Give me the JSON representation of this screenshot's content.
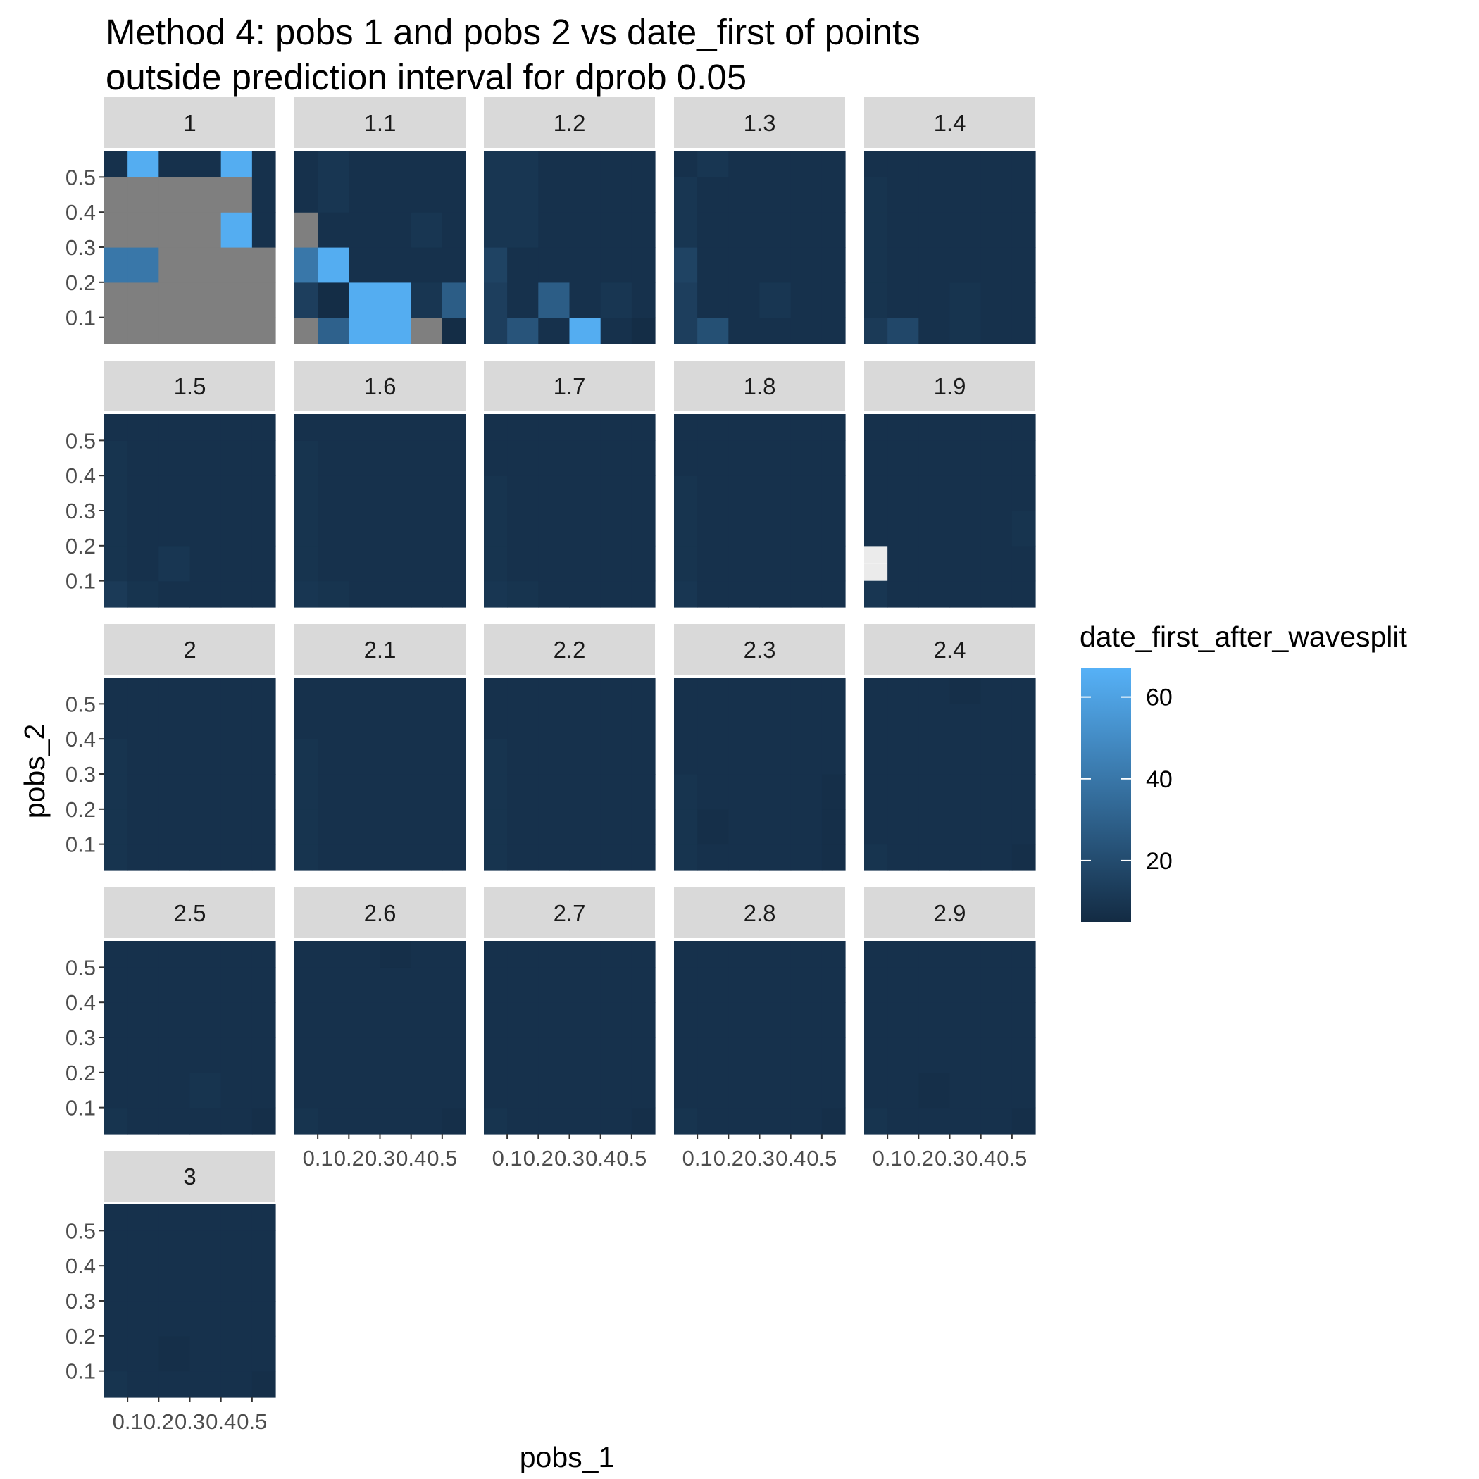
{
  "chart_data": {
    "type": "heatmap",
    "title_lines": [
      "Method 4: pobs 1 and pobs 2 vs date_first of points",
      "outside prediction interval for dprob 0.05"
    ],
    "xlabel": "pobs_1",
    "ylabel": "pobs_2",
    "x_ticks": [
      0.1,
      0.2,
      0.3,
      0.4,
      0.5
    ],
    "x_tick_labels": [
      "0.1",
      "0.2",
      "0.3",
      "0.4",
      "0.5"
    ],
    "y_ticks": [
      0.1,
      0.2,
      0.3,
      0.4,
      0.5
    ],
    "y_tick_labels": [
      "0.1",
      "0.2",
      "0.3",
      "0.4",
      "0.5"
    ],
    "xlim": [
      0.025,
      0.575
    ],
    "ylim": [
      0.025,
      0.575
    ],
    "x": [
      0.05,
      0.15,
      0.25,
      0.35,
      0.45,
      0.55
    ],
    "y": [
      0.05,
      0.15,
      0.25,
      0.35,
      0.45,
      0.55
    ],
    "grid": true,
    "legend": {
      "title": "date_first_after_wavesplit",
      "position": "right",
      "ticks": [
        20,
        40,
        60
      ],
      "tick_labels": [
        "20",
        "40",
        "60"
      ],
      "range": [
        5,
        67
      ],
      "low_color": "#132B43",
      "high_color": "#56B1F7",
      "na_color": "#7F7F7F"
    },
    "panels": [
      {
        "label": "1",
        "z": [
          [
            -1,
            -1,
            -1,
            -1,
            -1,
            -1
          ],
          [
            -1,
            -1,
            -1,
            -1,
            -1,
            -1
          ],
          [
            40,
            40,
            -1,
            -1,
            -1,
            -1
          ],
          [
            -1,
            -1,
            -1,
            -1,
            65,
            8
          ],
          [
            -1,
            -1,
            -1,
            -1,
            -1,
            8
          ],
          [
            8,
            65,
            8,
            8,
            65,
            8
          ]
        ]
      },
      {
        "label": "1.1",
        "z": [
          [
            -1,
            30,
            65,
            65,
            -1,
            6
          ],
          [
            14,
            6,
            65,
            65,
            10,
            28
          ],
          [
            40,
            65,
            8,
            8,
            8,
            8
          ],
          [
            -1,
            8,
            8,
            8,
            10,
            8
          ],
          [
            8,
            10,
            8,
            8,
            8,
            8
          ],
          [
            8,
            10,
            8,
            8,
            8,
            8
          ]
        ]
      },
      {
        "label": "1.2",
        "z": [
          [
            14,
            24,
            8,
            65,
            8,
            6
          ],
          [
            14,
            8,
            28,
            8,
            10,
            8
          ],
          [
            16,
            8,
            8,
            8,
            8,
            8
          ],
          [
            10,
            10,
            8,
            8,
            8,
            8
          ],
          [
            10,
            10,
            8,
            8,
            8,
            8
          ],
          [
            10,
            10,
            8,
            8,
            8,
            8
          ]
        ]
      },
      {
        "label": "1.3",
        "z": [
          [
            14,
            22,
            8,
            8,
            8,
            8
          ],
          [
            14,
            8,
            8,
            10,
            8,
            8
          ],
          [
            16,
            8,
            8,
            8,
            8,
            8
          ],
          [
            10,
            8,
            8,
            8,
            8,
            8
          ],
          [
            10,
            8,
            8,
            8,
            8,
            8
          ],
          [
            8,
            10,
            8,
            8,
            8,
            8
          ]
        ]
      },
      {
        "label": "1.4",
        "z": [
          [
            12,
            18,
            8,
            9,
            8,
            8
          ],
          [
            9,
            8,
            8,
            9,
            8,
            8
          ],
          [
            9,
            8,
            8,
            8,
            8,
            8
          ],
          [
            9,
            8,
            8,
            8,
            8,
            8
          ],
          [
            9,
            8,
            8,
            8,
            8,
            8
          ],
          [
            8,
            8,
            8,
            8,
            8,
            8
          ]
        ]
      },
      {
        "label": "1.5",
        "z": [
          [
            12,
            9,
            8,
            8,
            8,
            8
          ],
          [
            9,
            8,
            10,
            8,
            8,
            8
          ],
          [
            9,
            8,
            8,
            8,
            8,
            8
          ],
          [
            9,
            8,
            8,
            8,
            8,
            8
          ],
          [
            9,
            8,
            8,
            8,
            8,
            8
          ],
          [
            8,
            8,
            8,
            8,
            8,
            8
          ]
        ]
      },
      {
        "label": "1.6",
        "z": [
          [
            10,
            9,
            8,
            8,
            8,
            8
          ],
          [
            9,
            8,
            8,
            8,
            8,
            8
          ],
          [
            9,
            8,
            8,
            8,
            8,
            8
          ],
          [
            9,
            8,
            8,
            8,
            8,
            8
          ],
          [
            9,
            8,
            8,
            8,
            8,
            8
          ],
          [
            8,
            8,
            8,
            8,
            8,
            8
          ]
        ]
      },
      {
        "label": "1.7",
        "z": [
          [
            10,
            9,
            8,
            8,
            8,
            8
          ],
          [
            9,
            8,
            8,
            8,
            8,
            8
          ],
          [
            9,
            8,
            8,
            8,
            8,
            8
          ],
          [
            9,
            8,
            8,
            8,
            8,
            8
          ],
          [
            8,
            8,
            8,
            8,
            8,
            8
          ],
          [
            8,
            8,
            8,
            8,
            8,
            8
          ]
        ]
      },
      {
        "label": "1.8",
        "z": [
          [
            10,
            8,
            8,
            8,
            8,
            8
          ],
          [
            9,
            8,
            8,
            8,
            8,
            8
          ],
          [
            9,
            8,
            8,
            8,
            8,
            8
          ],
          [
            9,
            8,
            8,
            8,
            8,
            8
          ],
          [
            8,
            8,
            8,
            8,
            8,
            8
          ],
          [
            8,
            8,
            8,
            8,
            8,
            8
          ]
        ]
      },
      {
        "label": "1.9",
        "z": [
          [
            10,
            8,
            8,
            8,
            8,
            8
          ],
          [
            null,
            8,
            8,
            8,
            8,
            8
          ],
          [
            8,
            8,
            8,
            8,
            8,
            9
          ],
          [
            8,
            8,
            8,
            8,
            8,
            8
          ],
          [
            8,
            8,
            8,
            8,
            8,
            8
          ],
          [
            8,
            8,
            8,
            8,
            8,
            8
          ]
        ]
      },
      {
        "label": "2",
        "z": [
          [
            9,
            8,
            8,
            8,
            8,
            8
          ],
          [
            9,
            8,
            8,
            8,
            8,
            8
          ],
          [
            9,
            8,
            8,
            8,
            8,
            8
          ],
          [
            9,
            8,
            8,
            8,
            8,
            8
          ],
          [
            8,
            8,
            8,
            8,
            8,
            8
          ],
          [
            8,
            8,
            8,
            8,
            8,
            8
          ]
        ]
      },
      {
        "label": "2.1",
        "z": [
          [
            9,
            8,
            8,
            8,
            8,
            8
          ],
          [
            9,
            8,
            8,
            8,
            8,
            8
          ],
          [
            9,
            8,
            8,
            8,
            8,
            8
          ],
          [
            9,
            8,
            8,
            8,
            8,
            8
          ],
          [
            8,
            8,
            8,
            8,
            8,
            8
          ],
          [
            8,
            8,
            8,
            8,
            8,
            8
          ]
        ]
      },
      {
        "label": "2.2",
        "z": [
          [
            9,
            8,
            8,
            8,
            8,
            8
          ],
          [
            9,
            8,
            8,
            8,
            8,
            8
          ],
          [
            9,
            8,
            8,
            8,
            8,
            8
          ],
          [
            9,
            8,
            8,
            8,
            8,
            8
          ],
          [
            8,
            8,
            8,
            8,
            8,
            8
          ],
          [
            8,
            8,
            8,
            8,
            8,
            8
          ]
        ]
      },
      {
        "label": "2.3",
        "z": [
          [
            9,
            8,
            8,
            8,
            8,
            7
          ],
          [
            9,
            7,
            8,
            8,
            8,
            7
          ],
          [
            9,
            8,
            8,
            8,
            8,
            7
          ],
          [
            8,
            8,
            8,
            8,
            8,
            8
          ],
          [
            8,
            8,
            8,
            8,
            8,
            8
          ],
          [
            8,
            8,
            8,
            8,
            8,
            8
          ]
        ]
      },
      {
        "label": "2.4",
        "z": [
          [
            9,
            8,
            8,
            8,
            8,
            7
          ],
          [
            8,
            8,
            8,
            8,
            8,
            8
          ],
          [
            8,
            8,
            8,
            8,
            8,
            8
          ],
          [
            8,
            8,
            8,
            8,
            8,
            8
          ],
          [
            8,
            8,
            8,
            8,
            8,
            8
          ],
          [
            8,
            8,
            8,
            7,
            8,
            8
          ]
        ]
      },
      {
        "label": "2.5",
        "z": [
          [
            9,
            8,
            8,
            8,
            8,
            7
          ],
          [
            8,
            8,
            8,
            9,
            8,
            8
          ],
          [
            8,
            8,
            8,
            8,
            8,
            8
          ],
          [
            8,
            8,
            8,
            8,
            8,
            8
          ],
          [
            8,
            8,
            8,
            8,
            8,
            8
          ],
          [
            8,
            8,
            8,
            8,
            8,
            8
          ]
        ]
      },
      {
        "label": "2.6",
        "z": [
          [
            9,
            8,
            8,
            8,
            8,
            7
          ],
          [
            8,
            8,
            8,
            8,
            8,
            8
          ],
          [
            8,
            8,
            8,
            8,
            8,
            8
          ],
          [
            8,
            8,
            8,
            8,
            8,
            8
          ],
          [
            8,
            8,
            8,
            8,
            8,
            8
          ],
          [
            8,
            8,
            8,
            7,
            8,
            8
          ]
        ]
      },
      {
        "label": "2.7",
        "z": [
          [
            9,
            8,
            8,
            8,
            8,
            7
          ],
          [
            8,
            8,
            8,
            8,
            8,
            8
          ],
          [
            8,
            8,
            8,
            8,
            8,
            8
          ],
          [
            8,
            8,
            8,
            8,
            8,
            8
          ],
          [
            8,
            8,
            8,
            8,
            8,
            8
          ],
          [
            8,
            8,
            8,
            8,
            8,
            8
          ]
        ]
      },
      {
        "label": "2.8",
        "z": [
          [
            9,
            8,
            8,
            8,
            8,
            7
          ],
          [
            8,
            8,
            8,
            8,
            8,
            8
          ],
          [
            8,
            8,
            8,
            8,
            8,
            8
          ],
          [
            8,
            8,
            8,
            8,
            8,
            8
          ],
          [
            8,
            8,
            8,
            8,
            8,
            8
          ],
          [
            8,
            8,
            8,
            8,
            8,
            8
          ]
        ]
      },
      {
        "label": "2.9",
        "z": [
          [
            9,
            8,
            8,
            8,
            8,
            7
          ],
          [
            8,
            8,
            7,
            8,
            8,
            8
          ],
          [
            8,
            8,
            8,
            8,
            8,
            8
          ],
          [
            8,
            8,
            8,
            8,
            8,
            8
          ],
          [
            8,
            8,
            8,
            8,
            8,
            8
          ],
          [
            8,
            8,
            8,
            8,
            8,
            8
          ]
        ]
      },
      {
        "label": "3",
        "z": [
          [
            9,
            8,
            8,
            8,
            8,
            7
          ],
          [
            8,
            8,
            7,
            8,
            8,
            8
          ],
          [
            8,
            8,
            8,
            8,
            8,
            8
          ],
          [
            8,
            8,
            8,
            8,
            8,
            8
          ],
          [
            8,
            8,
            8,
            8,
            8,
            8
          ],
          [
            8,
            8,
            8,
            8,
            8,
            8
          ]
        ]
      }
    ]
  }
}
